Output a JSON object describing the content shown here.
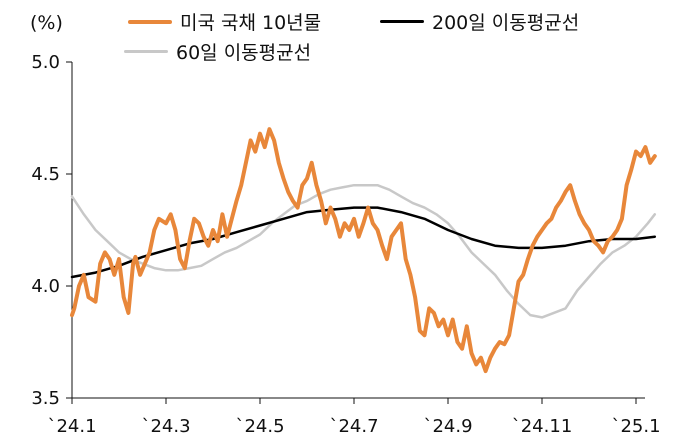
{
  "chart_data": {
    "type": "line",
    "unit_label": "(%)",
    "ylim": [
      3.5,
      5.0
    ],
    "yticks": [
      "3.5",
      "4.0",
      "4.5",
      "5.0"
    ],
    "xticks": [
      "`24.1",
      "`24.3",
      "`24.5",
      "`24.7",
      "`24.9",
      "`24.11",
      "`25.1"
    ],
    "xlim": [
      0,
      12.6
    ],
    "grid": false,
    "legend_position": "top",
    "series": [
      {
        "name": "미국 국채 10년물",
        "color": "#E8873A",
        "width": 4,
        "x": [
          0,
          0.05,
          0.15,
          0.25,
          0.35,
          0.5,
          0.6,
          0.7,
          0.8,
          0.9,
          1.0,
          1.1,
          1.2,
          1.3,
          1.35,
          1.45,
          1.55,
          1.65,
          1.75,
          1.85,
          2.0,
          2.1,
          2.2,
          2.3,
          2.4,
          2.5,
          2.6,
          2.7,
          2.8,
          2.9,
          3.0,
          3.1,
          3.2,
          3.3,
          3.4,
          3.5,
          3.6,
          3.7,
          3.8,
          3.9,
          4.0,
          4.1,
          4.2,
          4.3,
          4.4,
          4.5,
          4.6,
          4.7,
          4.8,
          4.9,
          5.0,
          5.1,
          5.2,
          5.3,
          5.4,
          5.5,
          5.6,
          5.7,
          5.8,
          5.9,
          6.0,
          6.1,
          6.2,
          6.3,
          6.4,
          6.5,
          6.6,
          6.7,
          6.8,
          6.9,
          7.0,
          7.1,
          7.2,
          7.3,
          7.4,
          7.5,
          7.6,
          7.7,
          7.8,
          7.9,
          8.0,
          8.1,
          8.2,
          8.3,
          8.4,
          8.5,
          8.6,
          8.7,
          8.8,
          8.9,
          9.0,
          9.1,
          9.2,
          9.3,
          9.4,
          9.5,
          9.6,
          9.7,
          9.8,
          9.9,
          10.0,
          10.1,
          10.2,
          10.3,
          10.4,
          10.5,
          10.6,
          10.7,
          10.8,
          10.9,
          11.0,
          11.1,
          11.2,
          11.3,
          11.4,
          11.5,
          11.6,
          11.7,
          11.8,
          11.9,
          12.0,
          12.1,
          12.2,
          12.3,
          12.4
        ],
        "y": [
          3.87,
          3.9,
          4.0,
          4.05,
          3.95,
          3.93,
          4.1,
          4.15,
          4.12,
          4.05,
          4.12,
          3.95,
          3.88,
          4.1,
          4.13,
          4.05,
          4.1,
          4.15,
          4.25,
          4.3,
          4.28,
          4.32,
          4.25,
          4.12,
          4.08,
          4.2,
          4.3,
          4.28,
          4.22,
          4.18,
          4.25,
          4.2,
          4.32,
          4.22,
          4.3,
          4.38,
          4.45,
          4.55,
          4.65,
          4.6,
          4.68,
          4.62,
          4.7,
          4.65,
          4.55,
          4.48,
          4.42,
          4.38,
          4.35,
          4.45,
          4.48,
          4.55,
          4.45,
          4.38,
          4.28,
          4.35,
          4.3,
          4.22,
          4.28,
          4.25,
          4.3,
          4.22,
          4.28,
          4.35,
          4.28,
          4.25,
          4.18,
          4.12,
          4.22,
          4.25,
          4.28,
          4.12,
          4.05,
          3.95,
          3.8,
          3.78,
          3.9,
          3.88,
          3.82,
          3.85,
          3.78,
          3.85,
          3.75,
          3.72,
          3.82,
          3.7,
          3.65,
          3.68,
          3.62,
          3.68,
          3.72,
          3.75,
          3.74,
          3.78,
          3.9,
          4.02,
          4.05,
          4.12,
          4.18,
          4.22,
          4.25,
          4.28,
          4.3,
          4.35,
          4.38,
          4.42,
          4.45,
          4.38,
          4.32,
          4.28,
          4.25,
          4.2,
          4.18,
          4.15,
          4.2,
          4.22,
          4.25,
          4.3,
          4.45,
          4.52,
          4.6,
          4.58,
          4.62,
          4.55,
          4.58
        ]
      },
      {
        "name": "200일 이동평균선",
        "color": "#000000",
        "width": 2.5,
        "x": [
          0,
          0.5,
          1,
          1.5,
          2,
          2.5,
          3,
          3.5,
          4,
          4.5,
          5,
          5.5,
          6,
          6.5,
          7,
          7.5,
          8,
          8.5,
          9,
          9.5,
          10,
          10.5,
          11,
          11.5,
          12,
          12.4
        ],
        "y": [
          4.04,
          4.06,
          4.09,
          4.13,
          4.16,
          4.19,
          4.21,
          4.24,
          4.27,
          4.3,
          4.33,
          4.34,
          4.35,
          4.35,
          4.33,
          4.3,
          4.25,
          4.21,
          4.18,
          4.17,
          4.17,
          4.18,
          4.2,
          4.21,
          4.21,
          4.22
        ]
      },
      {
        "name": "60일 이동평균선",
        "color": "#C8C8C8",
        "width": 2.5,
        "x": [
          0,
          0.25,
          0.5,
          0.75,
          1.0,
          1.25,
          1.5,
          1.75,
          2.0,
          2.25,
          2.5,
          2.75,
          3.0,
          3.25,
          3.5,
          3.75,
          4.0,
          4.25,
          4.5,
          4.75,
          5.0,
          5.25,
          5.5,
          5.75,
          6.0,
          6.25,
          6.5,
          6.75,
          7.0,
          7.25,
          7.5,
          7.75,
          8.0,
          8.25,
          8.5,
          8.75,
          9.0,
          9.25,
          9.5,
          9.75,
          10.0,
          10.25,
          10.5,
          10.75,
          11.0,
          11.25,
          11.5,
          11.75,
          12.0,
          12.25,
          12.4
        ],
        "y": [
          4.4,
          4.32,
          4.25,
          4.2,
          4.15,
          4.12,
          4.1,
          4.08,
          4.07,
          4.07,
          4.08,
          4.09,
          4.12,
          4.15,
          4.17,
          4.2,
          4.23,
          4.28,
          4.32,
          4.36,
          4.38,
          4.41,
          4.43,
          4.44,
          4.45,
          4.45,
          4.45,
          4.43,
          4.4,
          4.37,
          4.35,
          4.32,
          4.28,
          4.22,
          4.15,
          4.1,
          4.05,
          3.98,
          3.92,
          3.87,
          3.86,
          3.88,
          3.9,
          3.98,
          4.04,
          4.1,
          4.15,
          4.18,
          4.22,
          4.28,
          4.32
        ]
      }
    ]
  }
}
